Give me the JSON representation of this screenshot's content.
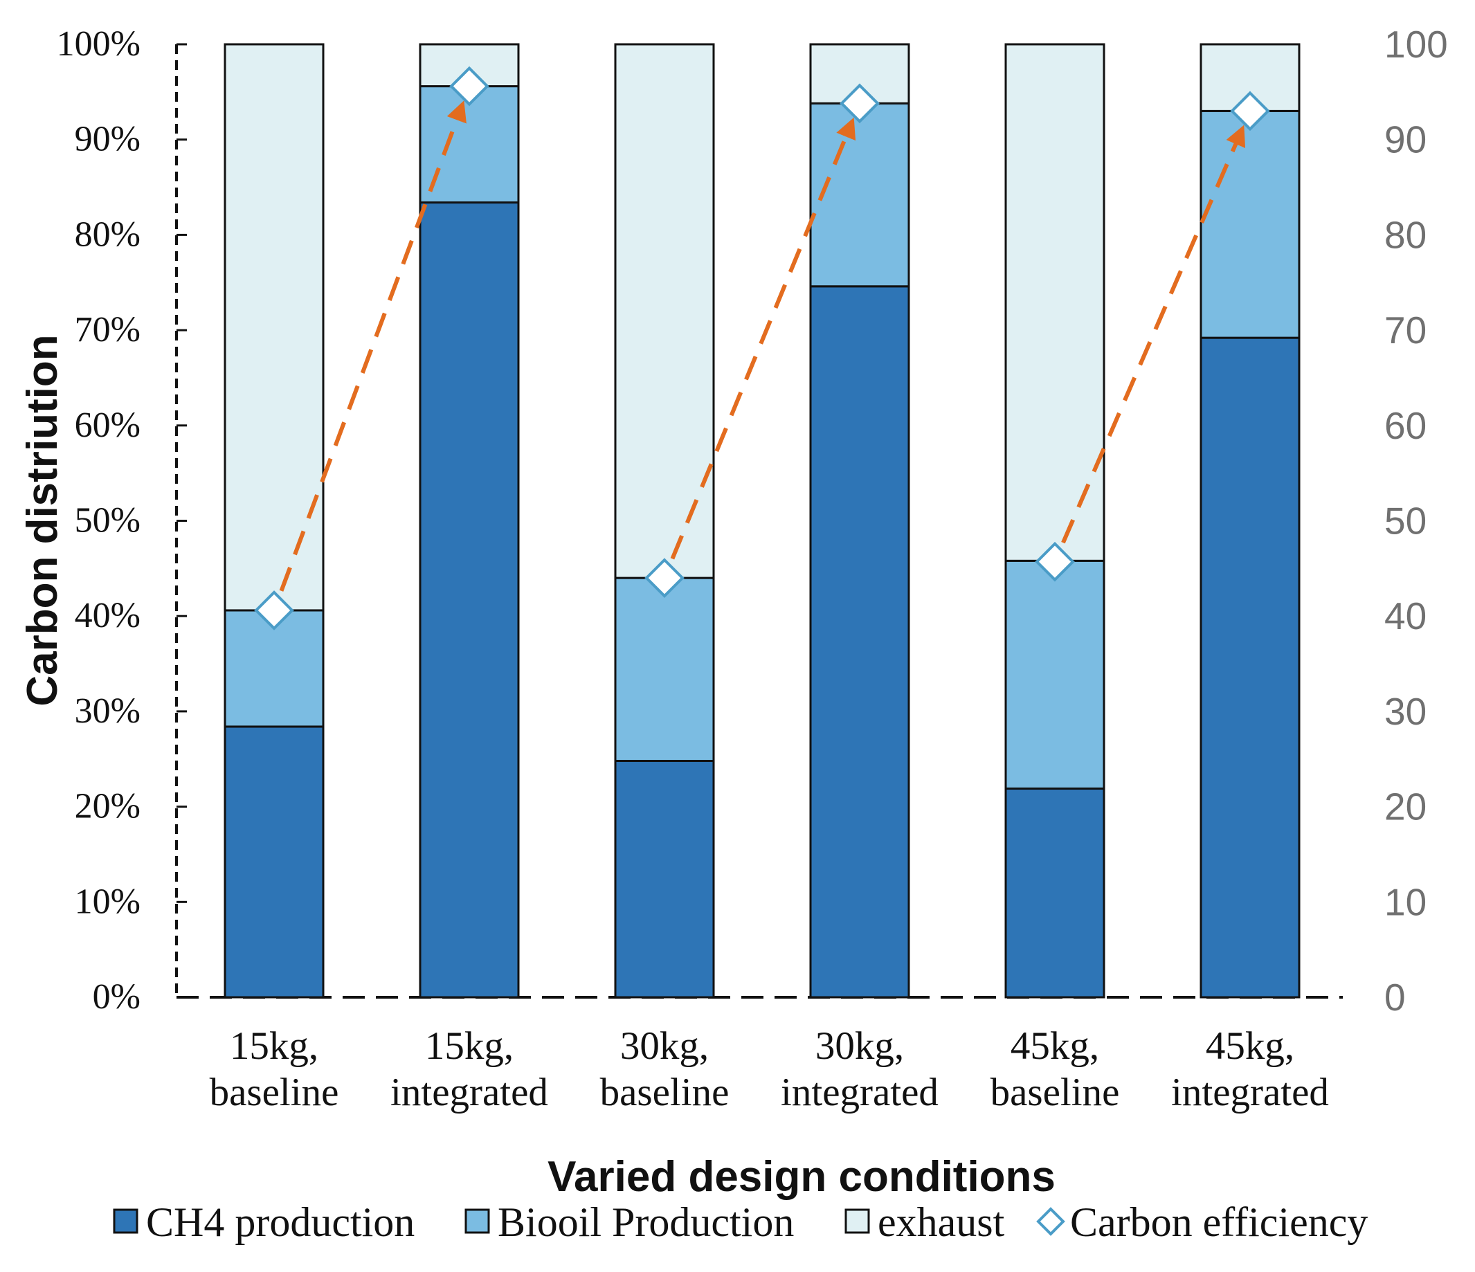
{
  "chart_data": {
    "type": "bar",
    "stacked": true,
    "title": "",
    "xlabel": "Varied design conditions",
    "ylabel": "Carbon distriution",
    "categories": [
      [
        "15kg,",
        "baseline"
      ],
      [
        "15kg,",
        "integrated"
      ],
      [
        "30kg,",
        "baseline"
      ],
      [
        "30kg,",
        "integrated"
      ],
      [
        "45kg,",
        "baseline"
      ],
      [
        "45kg,",
        "integrated"
      ]
    ],
    "series": [
      {
        "name": "CH4 production",
        "color": "#2e75b6",
        "values": [
          28.4,
          83.4,
          24.8,
          74.6,
          21.9,
          69.2
        ]
      },
      {
        "name": "Biooil Production",
        "color": "#7bbce2",
        "values": [
          12.2,
          12.2,
          19.2,
          19.2,
          23.9,
          23.8
        ]
      },
      {
        "name": "exhaust",
        "color": "#e0f0f3",
        "values": [
          59.4,
          4.4,
          56.0,
          6.2,
          54.2,
          7.0
        ]
      }
    ],
    "secondary_series": {
      "name": "Carbon efficiency",
      "marker": "diamond",
      "marker_color": "#4a9cc7",
      "marker_fill": "#ffffff",
      "values": [
        40.6,
        95.6,
        44.0,
        93.8,
        45.7,
        93.0
      ]
    },
    "arrows": [
      {
        "from_category": 0,
        "to_category": 1,
        "color": "#e36c1f",
        "style": "dashed"
      },
      {
        "from_category": 2,
        "to_category": 3,
        "color": "#e36c1f",
        "style": "dashed"
      },
      {
        "from_category": 4,
        "to_category": 5,
        "color": "#e36c1f",
        "style": "dashed"
      }
    ],
    "ylim": [
      0,
      100
    ],
    "y_ticks": [
      "0%",
      "10%",
      "20%",
      "30%",
      "40%",
      "50%",
      "60%",
      "70%",
      "80%",
      "90%",
      "100%"
    ],
    "y2lim": [
      0,
      100
    ],
    "y2_ticks": [
      "0",
      "10",
      "20",
      "30",
      "40",
      "50",
      "60",
      "70",
      "80",
      "90",
      "100"
    ],
    "grid": false,
    "legend_position": "bottom"
  }
}
